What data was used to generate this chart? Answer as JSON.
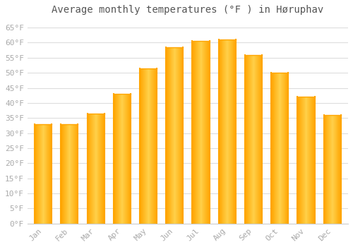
{
  "title": "Average monthly temperatures (°F ) in Høruphav",
  "months": [
    "Jan",
    "Feb",
    "Mar",
    "Apr",
    "May",
    "Jun",
    "Jul",
    "Aug",
    "Sep",
    "Oct",
    "Nov",
    "Dec"
  ],
  "values": [
    33,
    33,
    36.5,
    43,
    51.5,
    58.5,
    60.5,
    61,
    56,
    50,
    42,
    36
  ],
  "bar_color_left": "#FFA500",
  "bar_color_center": "#FFD04A",
  "bar_color_right": "#FFA500",
  "background_color": "#FFFFFF",
  "plot_bg_color": "#FFFFFF",
  "grid_color": "#DDDDDD",
  "ylim": [
    0,
    68
  ],
  "yticks": [
    0,
    5,
    10,
    15,
    20,
    25,
    30,
    35,
    40,
    45,
    50,
    55,
    60,
    65
  ],
  "ytick_labels": [
    "0°F",
    "5°F",
    "10°F",
    "15°F",
    "20°F",
    "25°F",
    "30°F",
    "35°F",
    "40°F",
    "45°F",
    "50°F",
    "55°F",
    "60°F",
    "65°F"
  ],
  "title_fontsize": 10,
  "tick_fontsize": 8,
  "tick_color": "#AAAAAA",
  "title_color": "#555555",
  "bar_width": 0.65
}
